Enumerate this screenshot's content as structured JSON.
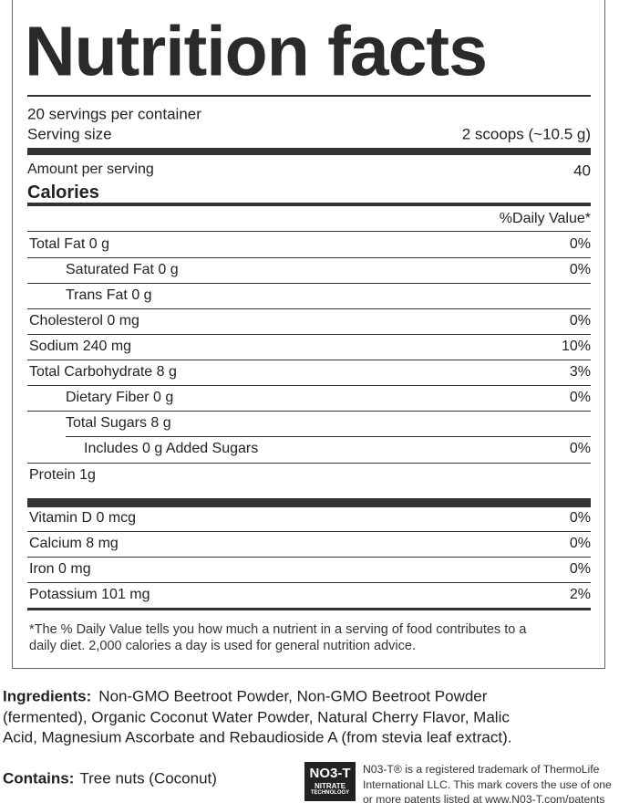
{
  "label": {
    "title": "Nutrition facts",
    "servings_per_container": "20 servings per container",
    "serving_size_label": "Serving size",
    "serving_size": "2 scoops (~10.5 g)",
    "amount_per_serving": "Amount per serving",
    "calories_label": "Calories",
    "calories": "40",
    "daily_value_header": "%Daily Value*",
    "nutrients": [
      {
        "name": "Total Fat 0 g",
        "dv": "0%",
        "sub": [
          {
            "name": "Saturated Fat 0 g",
            "dv": "0%"
          },
          {
            "name": "Trans Fat 0 g"
          }
        ]
      },
      {
        "name": "Cholesterol 0 mg",
        "dv": "0%"
      },
      {
        "name": "Sodium 240 mg",
        "dv": "10%"
      },
      {
        "name": "Total Carbohydrate 8 g",
        "dv": "3%",
        "sub": [
          {
            "name": "Dietary Fiber 0 g",
            "dv": "0%"
          },
          {
            "name": "Total  Sugars 8 g",
            "sub": [
              {
                "name": "Includes 0 g Added Sugars",
                "dv": "0%"
              }
            ]
          }
        ]
      },
      {
        "name": "Protein 1g"
      }
    ],
    "vitamins": [
      {
        "name": "Vitamin D 0 mcg",
        "dv": "0%"
      },
      {
        "name": "Calcium 8 mg",
        "dv": "0%"
      },
      {
        "name": "Iron 0 mg",
        "dv": "0%"
      },
      {
        "name": "Potassium 101 mg",
        "dv": "2%"
      }
    ],
    "footnote": [
      "*The % Daily Value tells you how much a nutrient in a serving of food contributes to a",
      "daily diet. 2,000 calories a day is used for general nutrition advice."
    ]
  },
  "ingredients": {
    "label": "Ingredients:",
    "lines": [
      "Non-GMO Beetroot Powder, Non-GMO Beetroot Powder",
      "(fermented), Organic Coconut Water Powder, Natural Cherry Flavor, Malic",
      "Acid, Magnesium Ascorbate and Rebaudioside A (from stevia leaf extract)."
    ]
  },
  "contains": {
    "label": "Contains:",
    "text": "Tree nuts (Coconut)"
  },
  "logo": {
    "mark": "NO3-T",
    "line1": "NITRATE",
    "line2": "TECHNOLOGY"
  },
  "trademark": [
    "N03-T® is a registered trademark of ThermoLife",
    "International LLC. This mark covers the use of one",
    "or more patents listed at www.N03-T.com/patents"
  ]
}
